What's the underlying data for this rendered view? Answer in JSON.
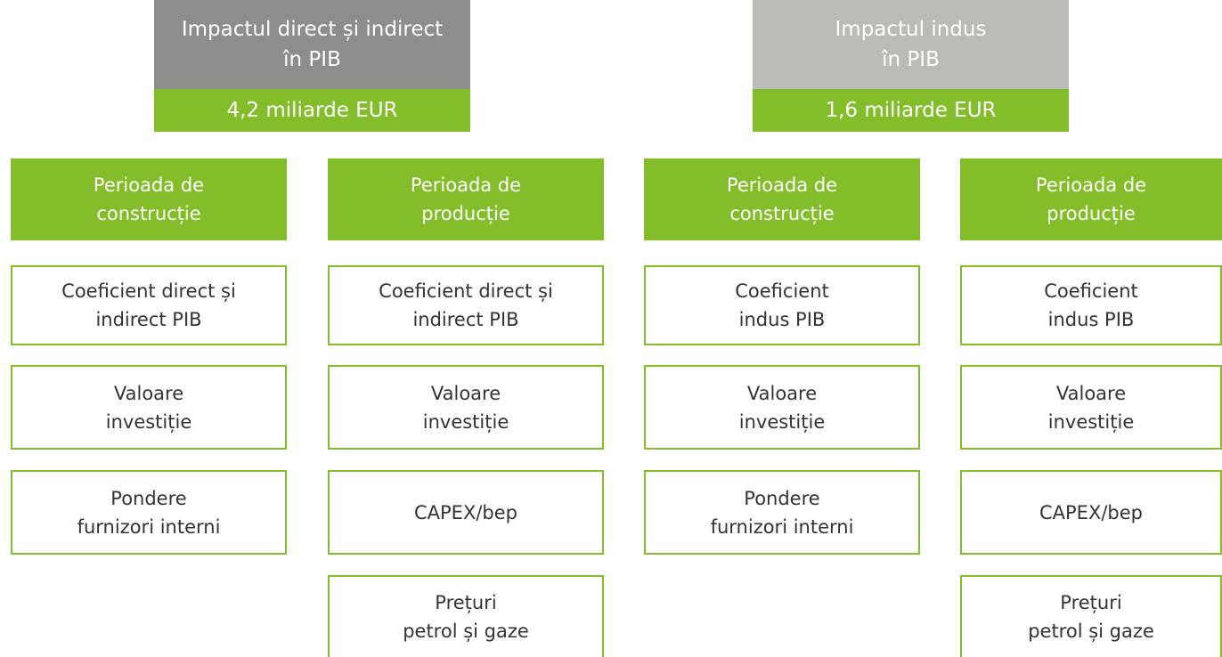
{
  "groups": [
    {
      "title": [
        "Impactul direct și indirect",
        "în PIB"
      ],
      "value": "4,2 miliarde EUR"
    },
    {
      "title": [
        "Impactul indus",
        "în PIB"
      ],
      "value": "1,6 miliarde EUR"
    }
  ],
  "columns": [
    {
      "header": [
        "Perioada de",
        "construcție"
      ],
      "items": [
        [
          "Coeficient direct și",
          "indirect PIB"
        ],
        [
          "Valoare",
          "investiție"
        ],
        [
          "Pondere",
          "furnizori interni"
        ]
      ]
    },
    {
      "header": [
        "Perioada de",
        "producție"
      ],
      "items": [
        [
          "Coeficient direct și",
          "indirect PIB"
        ],
        [
          "Valoare",
          "investiție"
        ],
        [
          "CAPEX/bep"
        ],
        [
          "Prețuri",
          "petrol și gaze"
        ]
      ]
    },
    {
      "header": [
        "Perioada de",
        "construcție"
      ],
      "items": [
        [
          "Coeficient",
          "indus PIB"
        ],
        [
          "Valoare",
          "investiție"
        ],
        [
          "Pondere",
          "furnizori interni"
        ]
      ]
    },
    {
      "header": [
        "Perioada de",
        "producție"
      ],
      "items": [
        [
          "Coeficient",
          "indus PIB"
        ],
        [
          "Valoare",
          "investiție"
        ],
        [
          "CAPEX/bep"
        ],
        [
          "Prețuri",
          "petrol și gaze"
        ]
      ]
    }
  ]
}
